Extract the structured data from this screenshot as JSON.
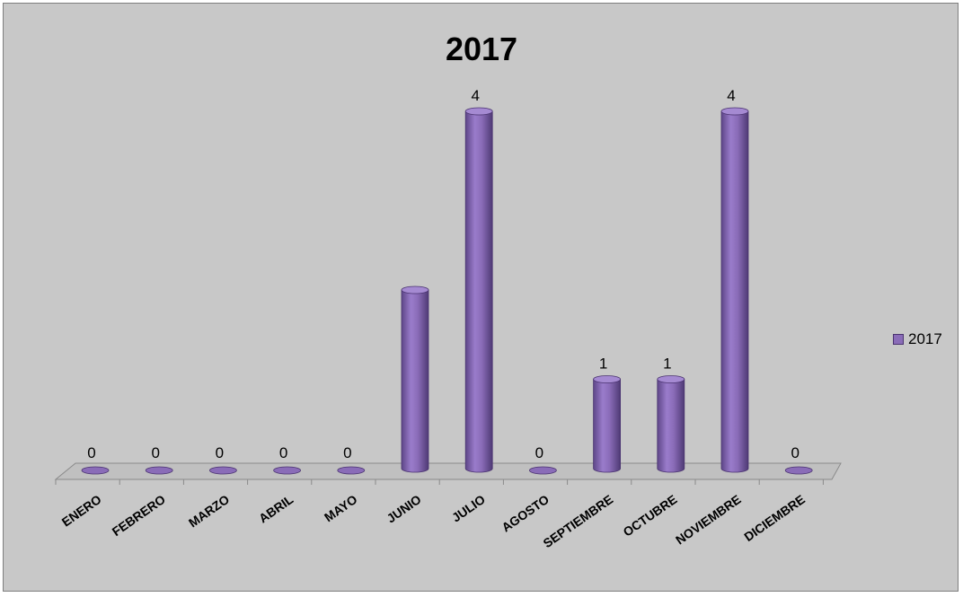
{
  "chart_data": {
    "type": "bar",
    "title": "2017",
    "categories": [
      "ENERO",
      "FEBRERO",
      "MARZO",
      "ABRIL",
      "MAYO",
      "JUNIO",
      "JULIO",
      "AGOSTO",
      "SEPTIEMBRE",
      "OCTUBRE",
      "NOVIEMBRE",
      "DICIEMBRE"
    ],
    "series": [
      {
        "name": "2017",
        "values": [
          0,
          0,
          0,
          0,
          0,
          2,
          4,
          0,
          1,
          1,
          4,
          0
        ],
        "data_labels": [
          "0",
          "0",
          "0",
          "0",
          "0",
          "",
          "4",
          "0",
          "1",
          "1",
          "4",
          "0"
        ],
        "color": "#8a6cb8"
      }
    ],
    "ylim": [
      0,
      4
    ],
    "grid": false,
    "legend_position": "right",
    "style": "3d-cylinder"
  }
}
